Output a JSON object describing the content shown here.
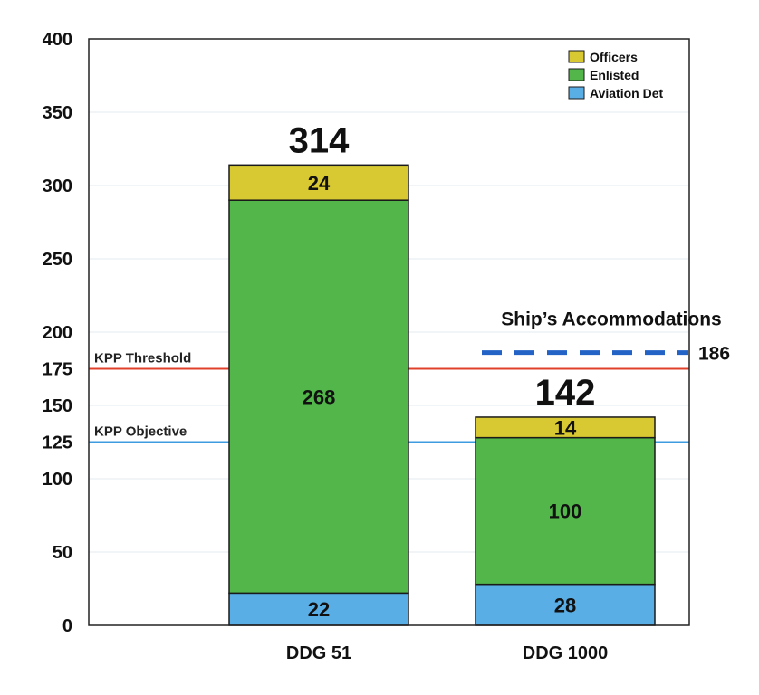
{
  "chart_data": {
    "type": "bar",
    "stacked": true,
    "categories": [
      "DDG 51",
      "DDG 1000"
    ],
    "series": [
      {
        "name": "Aviation Det",
        "values": [
          22,
          28
        ],
        "color": "#5aaee6"
      },
      {
        "name": "Enlisted",
        "values": [
          268,
          100
        ],
        "color": "#52b64a"
      },
      {
        "name": "Officers",
        "values": [
          24,
          14
        ],
        "color": "#d8c832"
      }
    ],
    "totals": [
      {
        "label": "314"
      },
      {
        "label": "142"
      }
    ],
    "ylim": [
      0,
      400
    ],
    "yticks": [
      0,
      50,
      100,
      125,
      150,
      175,
      200,
      250,
      300,
      350,
      400
    ],
    "legend_position": "top-right",
    "grid": true,
    "reference_lines": [
      {
        "label": "KPP Threshold",
        "value": 175,
        "color": "#e0402a"
      },
      {
        "label": "KPP Objective",
        "value": 125,
        "color": "#3d9be0"
      }
    ],
    "accommodations": {
      "title": "Ship’s Accommodations",
      "value": 186,
      "value_label": "186",
      "color": "#2463c6",
      "category_index": 1
    }
  }
}
